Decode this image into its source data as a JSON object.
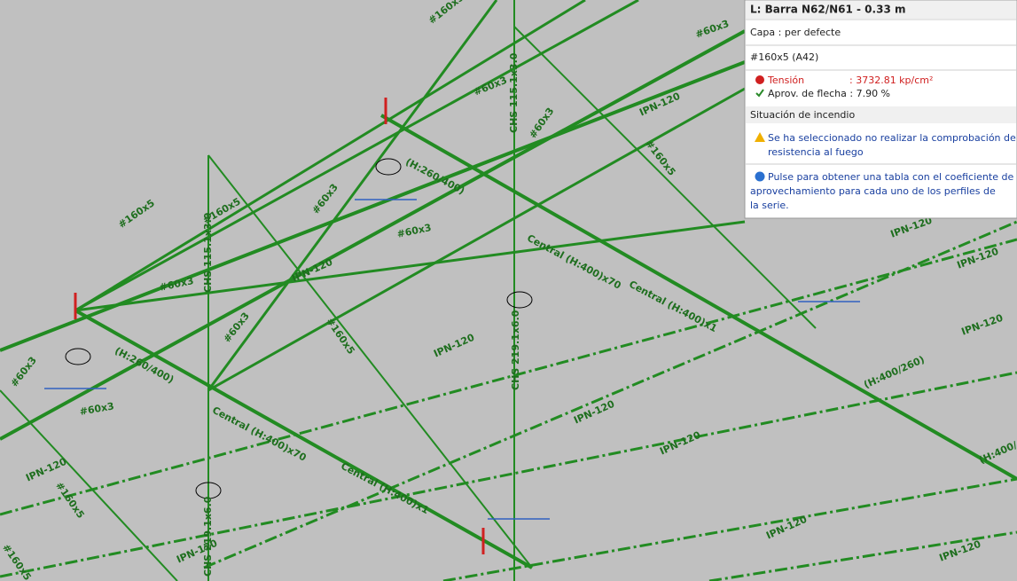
{
  "viewport": {
    "labels": [
      "#160x5",
      "#60x3",
      "#60x3",
      "CHS 115.1x3.0",
      "#160x5",
      "IPN-120",
      "#60x3",
      "#60x3",
      "#60x3",
      "CHS 115.1x3.0",
      "#60x3",
      "#160x5",
      "#60x3",
      "(H:260/400)",
      "#60x3",
      "(H:260/400)",
      "Central (H:400)x70",
      "#160x5",
      "CHS 219.1x6.0",
      "IPN-120",
      "Central (H:400)x1",
      "#60x3",
      "IPN-120",
      "Central (H:400)x70",
      "Central (H:400)x1",
      "IPN-120",
      "IPN-120",
      "CHS 219.1x6.0",
      "IPN-120",
      "#160x5",
      "#160x5",
      "IPN-120",
      "IPN-120",
      "(H:400/260)",
      "(H:400/",
      "IPN-120",
      "IPN-120",
      "IPN-120",
      "IPN-120",
      "#160x5"
    ]
  },
  "tooltip": {
    "title": "L: Barra N62/N61 - 0.33 m",
    "layer": "Capa : per defecte",
    "profile": "#160x5 (A42)",
    "stress_label": "Tensión",
    "stress_value": ": 3732.81 kp/cm²",
    "deflection": "Aprov. de flecha : 7.90 %",
    "fire_header": "Situación de incendio",
    "warning_lines": [
      "Se ha seleccionado no realizar la comprobación de",
      "resistencia al fuego"
    ],
    "info_lines": [
      "Pulse para obtener una tabla con el coeficiente de",
      "aprovechamiento para cada uno de los perfiles de",
      "la serie."
    ]
  }
}
